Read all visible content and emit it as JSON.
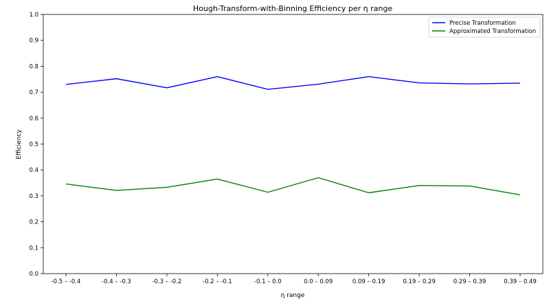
{
  "chart_data": {
    "type": "line",
    "title": "Hough-Transform-with-Binning Efficiency per η range",
    "xlabel": "η range",
    "ylabel": "Efficiency",
    "categories": [
      "-0.5 – -0.4",
      "-0.4 – -0.3",
      "-0.3 – -0.2",
      "-0.2 – -0.1",
      "-0.1 – 0.0",
      "0.0 – 0.09",
      "0.09 – 0.19",
      "0.19 – 0.29",
      "0.29 – 0.39",
      "0.39 – 0.49"
    ],
    "ylim": [
      0.0,
      1.0
    ],
    "yticks": [
      0.0,
      0.1,
      0.2,
      0.3,
      0.4,
      0.5,
      0.6,
      0.7,
      0.8,
      0.9,
      1.0
    ],
    "yticklabels": [
      "0.0",
      "0.1",
      "0.2",
      "0.3",
      "0.4",
      "0.5",
      "0.6",
      "0.7",
      "0.8",
      "0.9",
      "1.0"
    ],
    "grid": false,
    "legend_position": "top-right",
    "series": [
      {
        "name": "Precise Transformation",
        "color": "#0000ff",
        "values": [
          0.73,
          0.752,
          0.717,
          0.76,
          0.711,
          0.731,
          0.76,
          0.736,
          0.732,
          0.735
        ]
      },
      {
        "name": "Approximated Transformation",
        "color": "#008000",
        "values": [
          0.346,
          0.321,
          0.333,
          0.365,
          0.314,
          0.37,
          0.312,
          0.34,
          0.338,
          0.304
        ]
      }
    ]
  }
}
